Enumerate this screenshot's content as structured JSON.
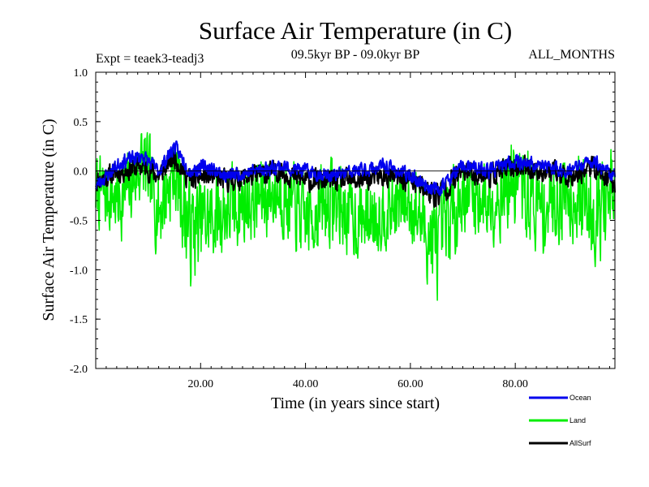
{
  "chart_data": {
    "type": "line",
    "title": "Surface Air Temperature (in C)",
    "subtitle_left": "Expt = teaek3-teadj3",
    "subtitle_center": "09.5kyr BP - 09.0kyr BP",
    "subtitle_right": "ALL_MONTHS",
    "xlabel": "Time (in years since start)",
    "ylabel": "Surface Air Temperature (in C)",
    "xlim": [
      0,
      99
    ],
    "ylim": [
      -2.0,
      1.0
    ],
    "x_ticks": [
      20,
      40,
      60,
      80
    ],
    "x_tick_labels": [
      "20.00",
      "40.00",
      "60.00",
      "80.00"
    ],
    "y_ticks": [
      1.0,
      0.5,
      0.0,
      -0.5,
      -1.0,
      -1.5,
      -2.0
    ],
    "y_tick_labels": [
      "1.0",
      "0.5",
      "0.0",
      "-0.5",
      "-1.0",
      "-1.5",
      "-2.0"
    ],
    "zero_line": true,
    "legend_position": "bottom-right",
    "series": [
      {
        "name": "Land",
        "color": "#00ee00",
        "x": [
          0,
          5,
          9,
          12,
          15,
          18,
          21,
          25,
          30,
          35,
          40,
          45,
          50,
          55,
          60,
          65,
          70,
          75,
          80,
          85,
          90,
          95,
          99
        ],
        "values": [
          -0.2,
          -0.3,
          0.1,
          -0.4,
          0.0,
          -0.6,
          -0.5,
          -0.4,
          -0.3,
          -0.2,
          -0.5,
          -0.3,
          -0.5,
          -0.4,
          -0.3,
          -0.8,
          -0.2,
          -0.3,
          -0.1,
          -0.4,
          -0.2,
          -0.4,
          -0.3
        ],
        "amplitude": [
          0.5,
          0.5,
          0.55,
          0.6,
          0.55,
          0.75,
          0.6,
          0.6,
          0.55,
          0.55,
          0.55,
          0.6,
          0.55,
          0.5,
          0.55,
          0.7,
          0.55,
          0.55,
          0.6,
          0.6,
          0.6,
          0.65,
          0.7
        ]
      },
      {
        "name": "AllSurf",
        "color": "#000000",
        "x": [
          0,
          5,
          9,
          12,
          15,
          18,
          21,
          25,
          30,
          35,
          40,
          45,
          50,
          55,
          60,
          65,
          70,
          75,
          80,
          85,
          90,
          95,
          99
        ],
        "values": [
          -0.1,
          0.0,
          0.05,
          -0.05,
          0.15,
          -0.1,
          -0.05,
          -0.1,
          -0.05,
          0.0,
          -0.1,
          -0.1,
          -0.1,
          -0.05,
          -0.1,
          -0.25,
          0.0,
          -0.05,
          0.05,
          0.0,
          -0.05,
          0.05,
          -0.15
        ],
        "amplitude": [
          0.15,
          0.15,
          0.15,
          0.15,
          0.15,
          0.15,
          0.15,
          0.15,
          0.15,
          0.15,
          0.15,
          0.15,
          0.15,
          0.15,
          0.15,
          0.2,
          0.15,
          0.15,
          0.15,
          0.15,
          0.15,
          0.15,
          0.15
        ]
      },
      {
        "name": "Ocean",
        "color": "#0000ee",
        "x": [
          0,
          5,
          9,
          12,
          15,
          18,
          21,
          25,
          30,
          35,
          40,
          45,
          50,
          55,
          60,
          65,
          70,
          75,
          80,
          85,
          90,
          95,
          99
        ],
        "values": [
          -0.15,
          0.1,
          0.15,
          0.0,
          0.25,
          0.0,
          0.05,
          -0.05,
          0.0,
          0.05,
          0.0,
          -0.05,
          0.0,
          0.05,
          -0.05,
          -0.2,
          0.05,
          0.0,
          0.1,
          0.05,
          0.0,
          0.1,
          -0.05
        ],
        "amplitude": [
          0.1,
          0.1,
          0.1,
          0.1,
          0.1,
          0.1,
          0.1,
          0.1,
          0.1,
          0.1,
          0.1,
          0.1,
          0.1,
          0.1,
          0.1,
          0.1,
          0.1,
          0.1,
          0.1,
          0.1,
          0.1,
          0.1,
          0.1
        ]
      }
    ],
    "legend": [
      {
        "name": "Ocean",
        "color": "#0000ee"
      },
      {
        "name": "Land",
        "color": "#00ee00"
      },
      {
        "name": "AllSurf",
        "color": "#000000"
      }
    ]
  }
}
